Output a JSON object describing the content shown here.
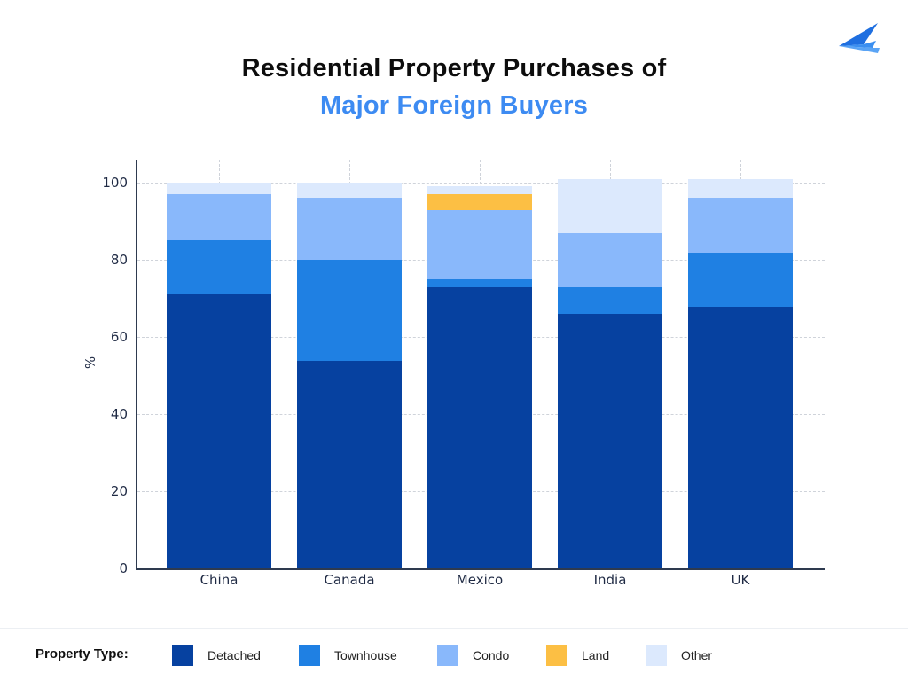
{
  "header": {
    "title_line1": "Residential Property Purchases of",
    "title_line2": "Major Foreign Buyers"
  },
  "logo": {
    "icon": "paper-plane-logo-icon"
  },
  "colors": {
    "Detached": "#0641a0",
    "Townhouse": "#1f80e3",
    "Condo": "#89b8fb",
    "Land": "#fcbf44",
    "Other": "#dce9fd",
    "title_accent": "#3d8bf2"
  },
  "axes": {
    "ylabel": "%",
    "yticks": [
      "0",
      "20",
      "40",
      "60",
      "80",
      "100"
    ],
    "xticks": [
      "China",
      "Canada",
      "Mexico",
      "India",
      "UK"
    ]
  },
  "legend": {
    "title": "Property Type:",
    "items": [
      "Detached",
      "Townhouse",
      "Condo",
      "Land",
      "Other"
    ]
  },
  "chart_data": {
    "type": "bar",
    "stacked": true,
    "title": "Residential Property Purchases of Major Foreign Buyers",
    "xlabel": "",
    "ylabel": "%",
    "ylim": [
      0,
      105
    ],
    "grid": true,
    "legend_position": "bottom",
    "categories": [
      "China",
      "Canada",
      "Mexico",
      "India",
      "UK"
    ],
    "series": [
      {
        "name": "Detached",
        "values": [
          71,
          54,
          73,
          66,
          68
        ]
      },
      {
        "name": "Townhouse",
        "values": [
          14,
          26,
          2,
          7,
          14
        ]
      },
      {
        "name": "Condo",
        "values": [
          12,
          16,
          18,
          14,
          14
        ]
      },
      {
        "name": "Land",
        "values": [
          0,
          0,
          4,
          0,
          0
        ]
      },
      {
        "name": "Other",
        "values": [
          3,
          4,
          2,
          14,
          5
        ]
      }
    ]
  }
}
